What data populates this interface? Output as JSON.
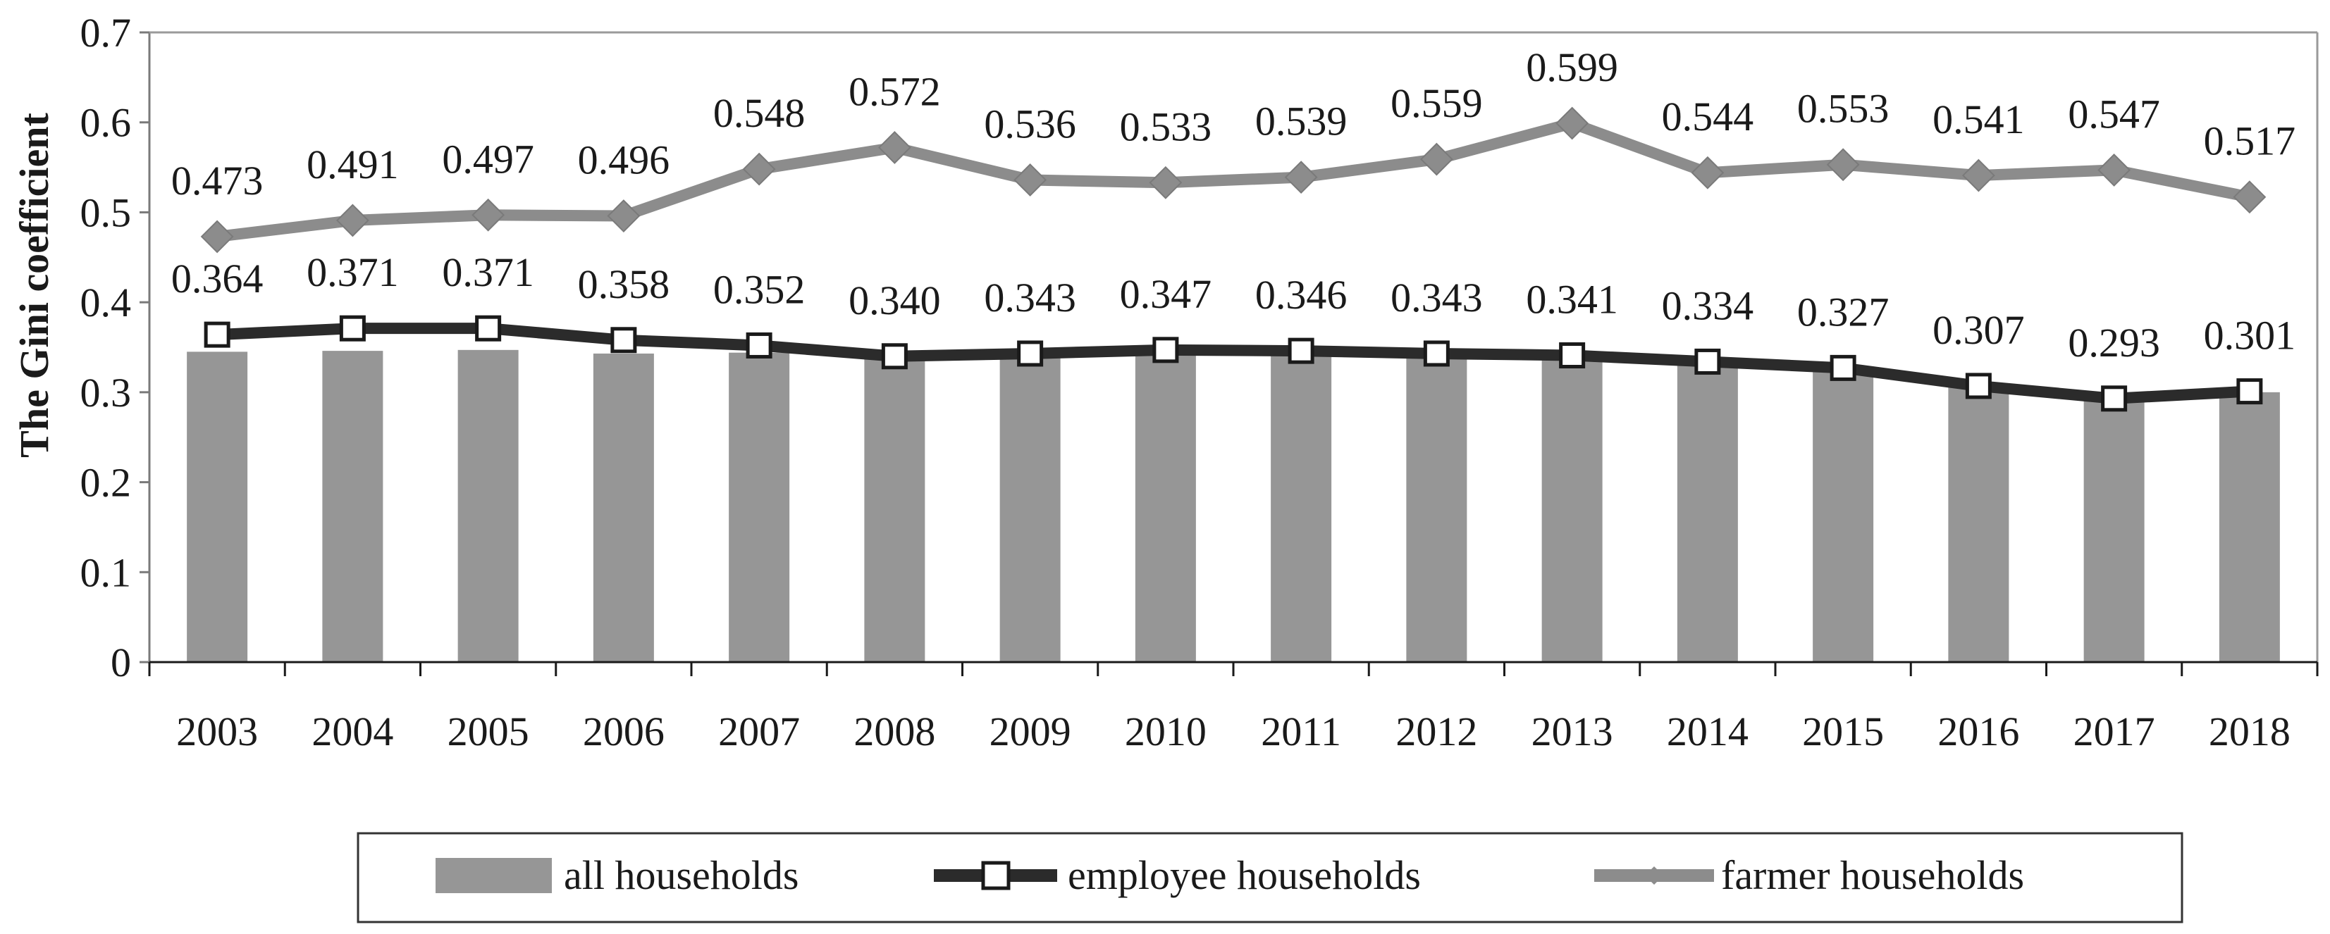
{
  "chart_data": {
    "type": "bar",
    "ylabel": "The Gini coefficient",
    "xlabel": "",
    "ylim": [
      0,
      0.7
    ],
    "yticks": [
      "0",
      "0.1",
      "0.2",
      "0.3",
      "0.4",
      "0.5",
      "0.6",
      "0.7"
    ],
    "categories": [
      "2003",
      "2004",
      "2005",
      "2006",
      "2007",
      "2008",
      "2009",
      "2010",
      "2011",
      "2012",
      "2013",
      "2014",
      "2015",
      "2016",
      "2017",
      "2018"
    ],
    "legend_position": "bottom",
    "grid": false,
    "series": [
      {
        "name": "all households",
        "type": "bar",
        "color": "#969696",
        "values": [
          0.345,
          0.346,
          0.347,
          0.343,
          0.344,
          0.338,
          0.341,
          0.345,
          0.344,
          0.341,
          0.34,
          0.333,
          0.325,
          0.306,
          0.292,
          0.3
        ]
      },
      {
        "name": "employee households",
        "type": "line",
        "color": "#2b2b2b",
        "marker": "square",
        "values": [
          0.364,
          0.371,
          0.371,
          0.358,
          0.352,
          0.34,
          0.343,
          0.347,
          0.346,
          0.343,
          0.341,
          0.334,
          0.327,
          0.307,
          0.293,
          0.301
        ],
        "labels": [
          "0.364",
          "0.371",
          "0.371",
          "0.358",
          "0.352",
          "0.340",
          "0.343",
          "0.347",
          "0.346",
          "0.343",
          "0.341",
          "0.334",
          "0.327",
          "0.307",
          "0.293",
          "0.301"
        ]
      },
      {
        "name": "farmer households",
        "type": "line",
        "color": "#8c8c8c",
        "marker": "diamond",
        "values": [
          0.473,
          0.491,
          0.497,
          0.496,
          0.548,
          0.572,
          0.536,
          0.533,
          0.539,
          0.559,
          0.599,
          0.544,
          0.553,
          0.541,
          0.547,
          0.517
        ],
        "labels": [
          "0.473",
          "0.491",
          "0.497",
          "0.496",
          "0.548",
          "0.572",
          "0.536",
          "0.533",
          "0.539",
          "0.559",
          "0.599",
          "0.544",
          "0.553",
          "0.541",
          "0.547",
          "0.517"
        ]
      }
    ]
  }
}
